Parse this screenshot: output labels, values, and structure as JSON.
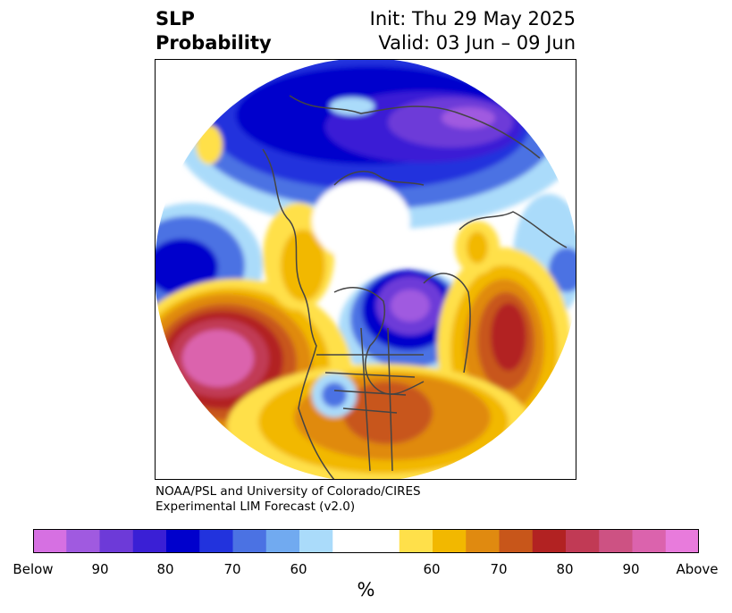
{
  "title": {
    "left_line1": "SLP",
    "left_line2": "Probability",
    "init": "Init: Thu 29 May 2025",
    "valid": "Valid: 03 Jun – 09 Jun"
  },
  "credit": {
    "line1": "NOAA/PSL and University of Colorado/CIRES",
    "line2": "Experimental LIM Forecast (v2.0)"
  },
  "colorbar": {
    "colors": [
      "#d670e2",
      "#a05ae0",
      "#6d3ad8",
      "#3a1fd5",
      "#0000cc",
      "#2233dd",
      "#4b72e3",
      "#71aaf0",
      "#aadbfa",
      "#ffffff",
      "#ffe04a",
      "#f2b800",
      "#e08a10",
      "#c8561a",
      "#b22222",
      "#c13a55",
      "#cd5283",
      "#db63ad",
      "#e87bdc"
    ],
    "tick_labels": [
      "Below",
      "90",
      "80",
      "70",
      "60",
      "60",
      "70",
      "80",
      "90",
      "Above"
    ],
    "units": "%"
  }
}
